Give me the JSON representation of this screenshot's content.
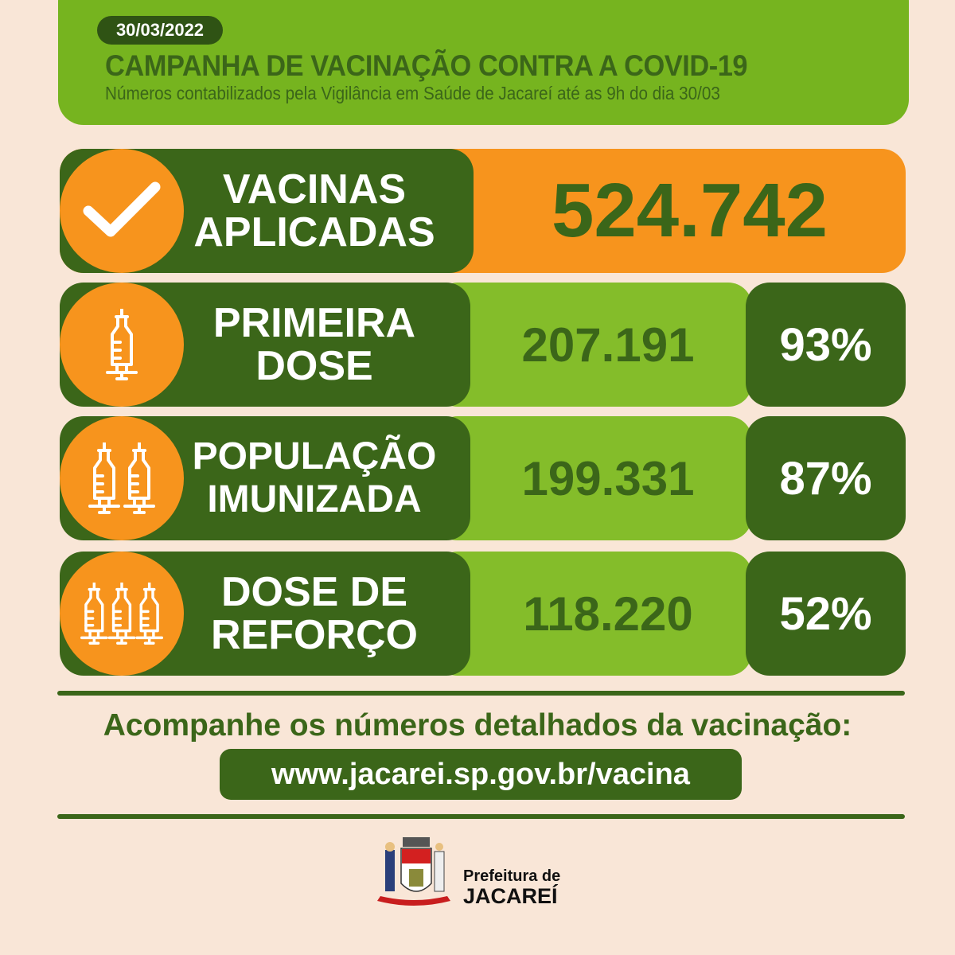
{
  "header": {
    "date": "30/03/2022",
    "title": "CAMPANHA DE VACINAÇÃO CONTRA A COVID-19",
    "subtitle": "Números contabilizados pela Vigilância em Saúde de Jacareí até as 9h do dia 30/03"
  },
  "colors": {
    "background": "#f9e6d7",
    "accent_green": "#76b41f",
    "dark_green": "#3b6619",
    "orange": "#f7941d",
    "light_green": "#84bd2a"
  },
  "stats": [
    {
      "icon": "check-icon",
      "label_line1": "VACINAS",
      "label_line2": "APLICADAS",
      "value": "524.742"
    },
    {
      "icon": "syringe-icon",
      "label_line1": "PRIMEIRA",
      "label_line2": "DOSE",
      "value": "207.191",
      "percent": "93%"
    },
    {
      "icon": "two-syringes-icon",
      "label_line1": "POPULAÇÃO",
      "label_line2": "IMUNIZADA",
      "value": "199.331",
      "percent": "87%"
    },
    {
      "icon": "three-syringes-icon",
      "label_line1": "DOSE DE",
      "label_line2": "REFORÇO",
      "value": "118.220",
      "percent": "52%"
    }
  ],
  "footer": {
    "follow_text": "Acompanhe os números detalhados da vacinação:",
    "url": "www.jacarei.sp.gov.br/vacina",
    "logo_line1": "Prefeitura de",
    "logo_line2": "JACAREÍ"
  }
}
